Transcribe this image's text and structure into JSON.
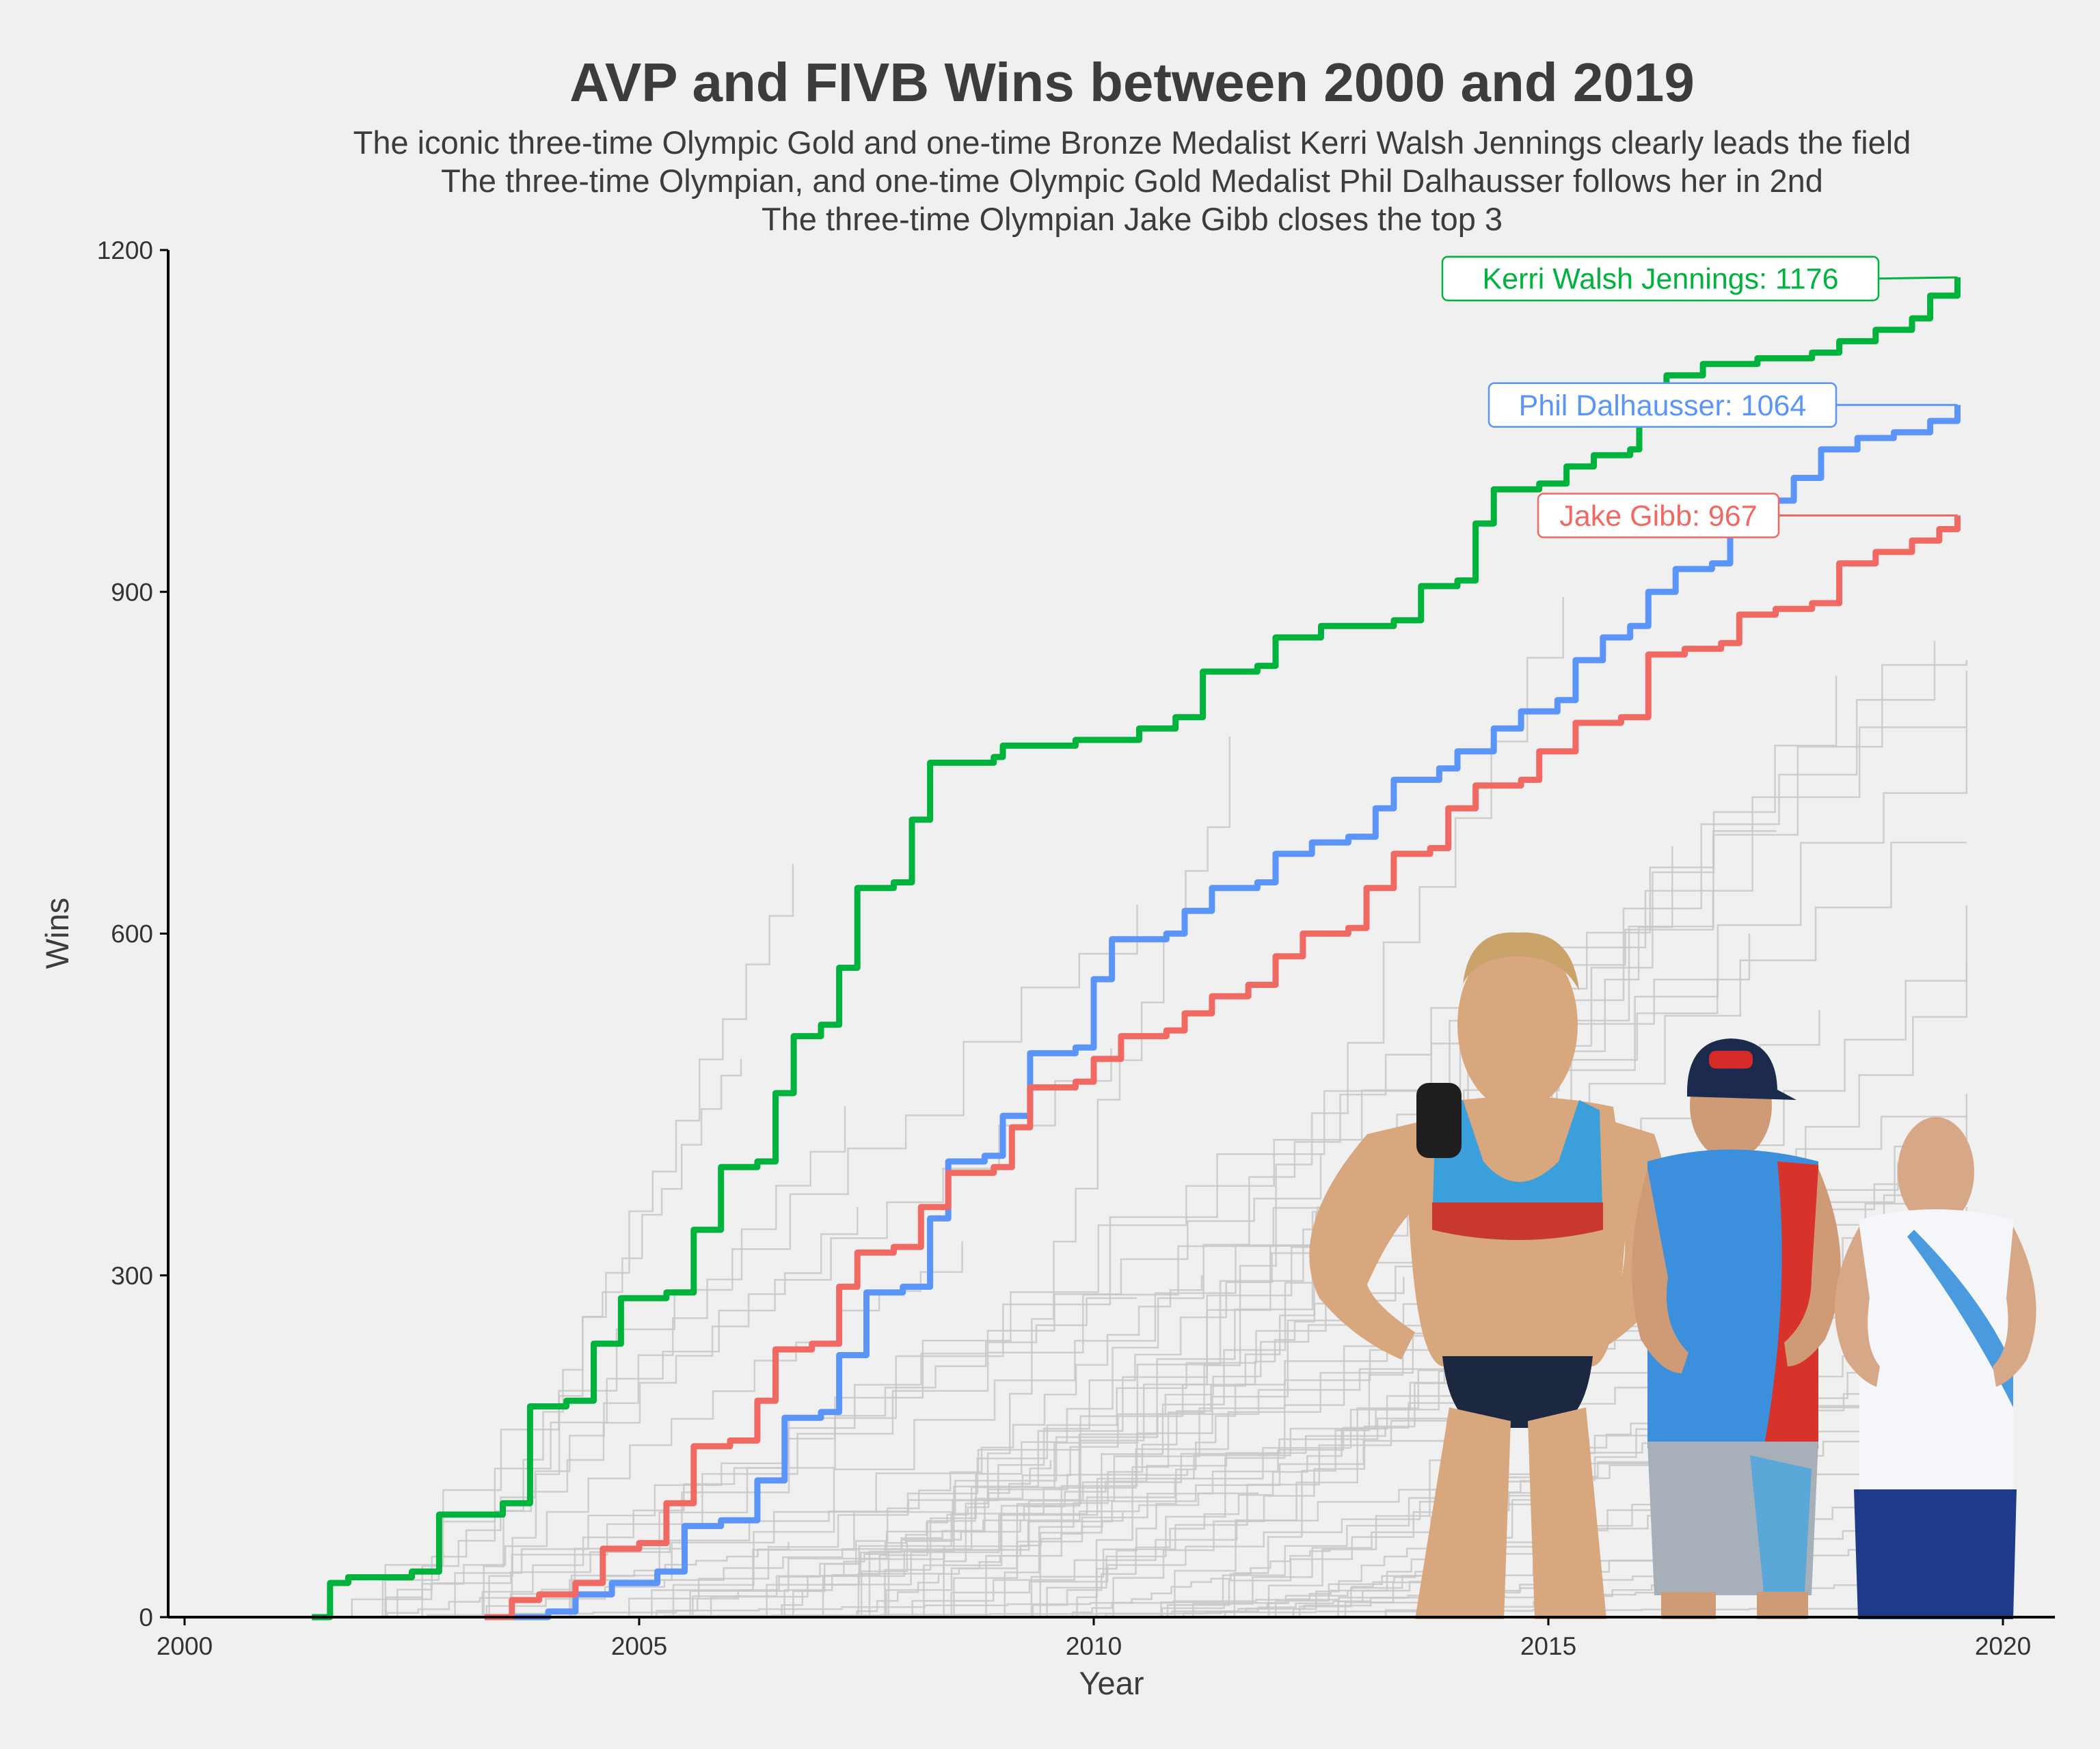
{
  "chart_data": {
    "type": "line",
    "title": "AVP and FIVB Wins between 2000 and 2019",
    "subtitle": [
      "The iconic three-time Olympic Gold and one-time Bronze Medalist Kerri Walsh Jennings clearly leads the field",
      "The three-time Olympian, and one-time Olympic Gold Medalist Phil Dalhausser follows her in 2nd",
      "The three-time Olympian Jake Gibb closes the top 3"
    ],
    "xlabel": "Year",
    "ylabel": "Wins",
    "xlim": [
      2000,
      2020.5
    ],
    "ylim": [
      0,
      1200
    ],
    "x_ticks": [
      2000,
      2005,
      2010,
      2015,
      2020
    ],
    "y_ticks": [
      0,
      300,
      600,
      900,
      1200
    ],
    "grid": false,
    "step": true,
    "highlight_series": [
      {
        "name": "Kerri Walsh Jennings",
        "color": "#00b33c",
        "annotation": "Kerri Walsh Jennings: 1176",
        "points": [
          [
            2001.4,
            0
          ],
          [
            2001.6,
            30
          ],
          [
            2001.8,
            35
          ],
          [
            2002.5,
            40
          ],
          [
            2002.8,
            90
          ],
          [
            2003.5,
            100
          ],
          [
            2003.8,
            185
          ],
          [
            2004.2,
            190
          ],
          [
            2004.5,
            240
          ],
          [
            2004.8,
            280
          ],
          [
            2005.3,
            285
          ],
          [
            2005.6,
            340
          ],
          [
            2005.9,
            395
          ],
          [
            2006.3,
            400
          ],
          [
            2006.5,
            460
          ],
          [
            2006.7,
            510
          ],
          [
            2007.0,
            520
          ],
          [
            2007.2,
            570
          ],
          [
            2007.4,
            640
          ],
          [
            2007.8,
            645
          ],
          [
            2008.0,
            700
          ],
          [
            2008.2,
            750
          ],
          [
            2008.9,
            755
          ],
          [
            2009.0,
            765
          ],
          [
            2009.8,
            770
          ],
          [
            2010.5,
            780
          ],
          [
            2010.9,
            790
          ],
          [
            2011.2,
            830
          ],
          [
            2011.8,
            835
          ],
          [
            2012.0,
            860
          ],
          [
            2012.5,
            870
          ],
          [
            2013.3,
            875
          ],
          [
            2013.6,
            905
          ],
          [
            2014.0,
            910
          ],
          [
            2014.2,
            960
          ],
          [
            2014.4,
            990
          ],
          [
            2014.9,
            995
          ],
          [
            2015.2,
            1010
          ],
          [
            2015.5,
            1020
          ],
          [
            2015.9,
            1025
          ],
          [
            2016.0,
            1060
          ],
          [
            2016.3,
            1090
          ],
          [
            2016.7,
            1100
          ],
          [
            2017.3,
            1105
          ],
          [
            2017.9,
            1110
          ],
          [
            2018.2,
            1120
          ],
          [
            2018.6,
            1130
          ],
          [
            2019.0,
            1140
          ],
          [
            2019.2,
            1160
          ],
          [
            2019.5,
            1176
          ]
        ]
      },
      {
        "name": "Phil Dalhausser",
        "color": "#5b95f9",
        "annotation": "Phil Dalhausser: 1064",
        "points": [
          [
            2003.6,
            0
          ],
          [
            2004.0,
            5
          ],
          [
            2004.3,
            20
          ],
          [
            2004.7,
            30
          ],
          [
            2005.2,
            40
          ],
          [
            2005.5,
            80
          ],
          [
            2005.9,
            85
          ],
          [
            2006.3,
            120
          ],
          [
            2006.6,
            175
          ],
          [
            2007.0,
            180
          ],
          [
            2007.2,
            230
          ],
          [
            2007.5,
            285
          ],
          [
            2007.9,
            290
          ],
          [
            2008.2,
            350
          ],
          [
            2008.4,
            400
          ],
          [
            2008.8,
            405
          ],
          [
            2009.0,
            440
          ],
          [
            2009.3,
            495
          ],
          [
            2009.8,
            500
          ],
          [
            2010.0,
            560
          ],
          [
            2010.2,
            595
          ],
          [
            2010.8,
            600
          ],
          [
            2011.0,
            620
          ],
          [
            2011.3,
            640
          ],
          [
            2011.8,
            645
          ],
          [
            2012.0,
            670
          ],
          [
            2012.4,
            680
          ],
          [
            2012.8,
            685
          ],
          [
            2013.1,
            710
          ],
          [
            2013.3,
            735
          ],
          [
            2013.8,
            745
          ],
          [
            2014.0,
            760
          ],
          [
            2014.4,
            780
          ],
          [
            2014.7,
            795
          ],
          [
            2015.1,
            805
          ],
          [
            2015.3,
            840
          ],
          [
            2015.6,
            860
          ],
          [
            2015.9,
            870
          ],
          [
            2016.1,
            900
          ],
          [
            2016.4,
            920
          ],
          [
            2016.8,
            925
          ],
          [
            2017.0,
            970
          ],
          [
            2017.4,
            980
          ],
          [
            2017.7,
            1000
          ],
          [
            2018.0,
            1025
          ],
          [
            2018.4,
            1035
          ],
          [
            2018.8,
            1040
          ],
          [
            2019.2,
            1050
          ],
          [
            2019.5,
            1064
          ]
        ]
      },
      {
        "name": "Jake Gibb",
        "color": "#f06a63",
        "annotation": "Jake Gibb: 967",
        "points": [
          [
            2003.3,
            0
          ],
          [
            2003.6,
            15
          ],
          [
            2003.9,
            20
          ],
          [
            2004.3,
            30
          ],
          [
            2004.6,
            60
          ],
          [
            2005.0,
            65
          ],
          [
            2005.3,
            100
          ],
          [
            2005.6,
            150
          ],
          [
            2006.0,
            155
          ],
          [
            2006.3,
            190
          ],
          [
            2006.5,
            235
          ],
          [
            2006.9,
            240
          ],
          [
            2007.2,
            290
          ],
          [
            2007.4,
            320
          ],
          [
            2007.8,
            325
          ],
          [
            2008.1,
            360
          ],
          [
            2008.4,
            390
          ],
          [
            2008.9,
            395
          ],
          [
            2009.1,
            430
          ],
          [
            2009.3,
            465
          ],
          [
            2009.8,
            470
          ],
          [
            2010.0,
            490
          ],
          [
            2010.3,
            510
          ],
          [
            2010.8,
            515
          ],
          [
            2011.0,
            530
          ],
          [
            2011.3,
            545
          ],
          [
            2011.7,
            555
          ],
          [
            2012.0,
            580
          ],
          [
            2012.3,
            600
          ],
          [
            2012.8,
            605
          ],
          [
            2013.0,
            640
          ],
          [
            2013.3,
            670
          ],
          [
            2013.7,
            675
          ],
          [
            2013.9,
            710
          ],
          [
            2014.2,
            730
          ],
          [
            2014.7,
            735
          ],
          [
            2014.9,
            760
          ],
          [
            2015.3,
            785
          ],
          [
            2015.8,
            790
          ],
          [
            2016.1,
            845
          ],
          [
            2016.5,
            850
          ],
          [
            2016.9,
            855
          ],
          [
            2017.1,
            880
          ],
          [
            2017.5,
            885
          ],
          [
            2017.9,
            890
          ],
          [
            2018.2,
            925
          ],
          [
            2018.6,
            935
          ],
          [
            2019.0,
            945
          ],
          [
            2019.3,
            955
          ],
          [
            2019.5,
            967
          ]
        ]
      }
    ],
    "background_series": {
      "color": "#c8c8c8",
      "final_wins": [
        920,
        905,
        880,
        860,
        840,
        800,
        780,
        760,
        740,
        700,
        690,
        680,
        660,
        650,
        630,
        600,
        580,
        560,
        540,
        520,
        500,
        490,
        480,
        470,
        460,
        450,
        440,
        430,
        420,
        410,
        400,
        390,
        380,
        370,
        360,
        350,
        340,
        330,
        320,
        310,
        300,
        290,
        280,
        270,
        260,
        250,
        240,
        230,
        220,
        210,
        200,
        190,
        180,
        170,
        160,
        150,
        140,
        130,
        120,
        110,
        100,
        90,
        80,
        70,
        60,
        50,
        40,
        30,
        20,
        10
      ]
    }
  }
}
